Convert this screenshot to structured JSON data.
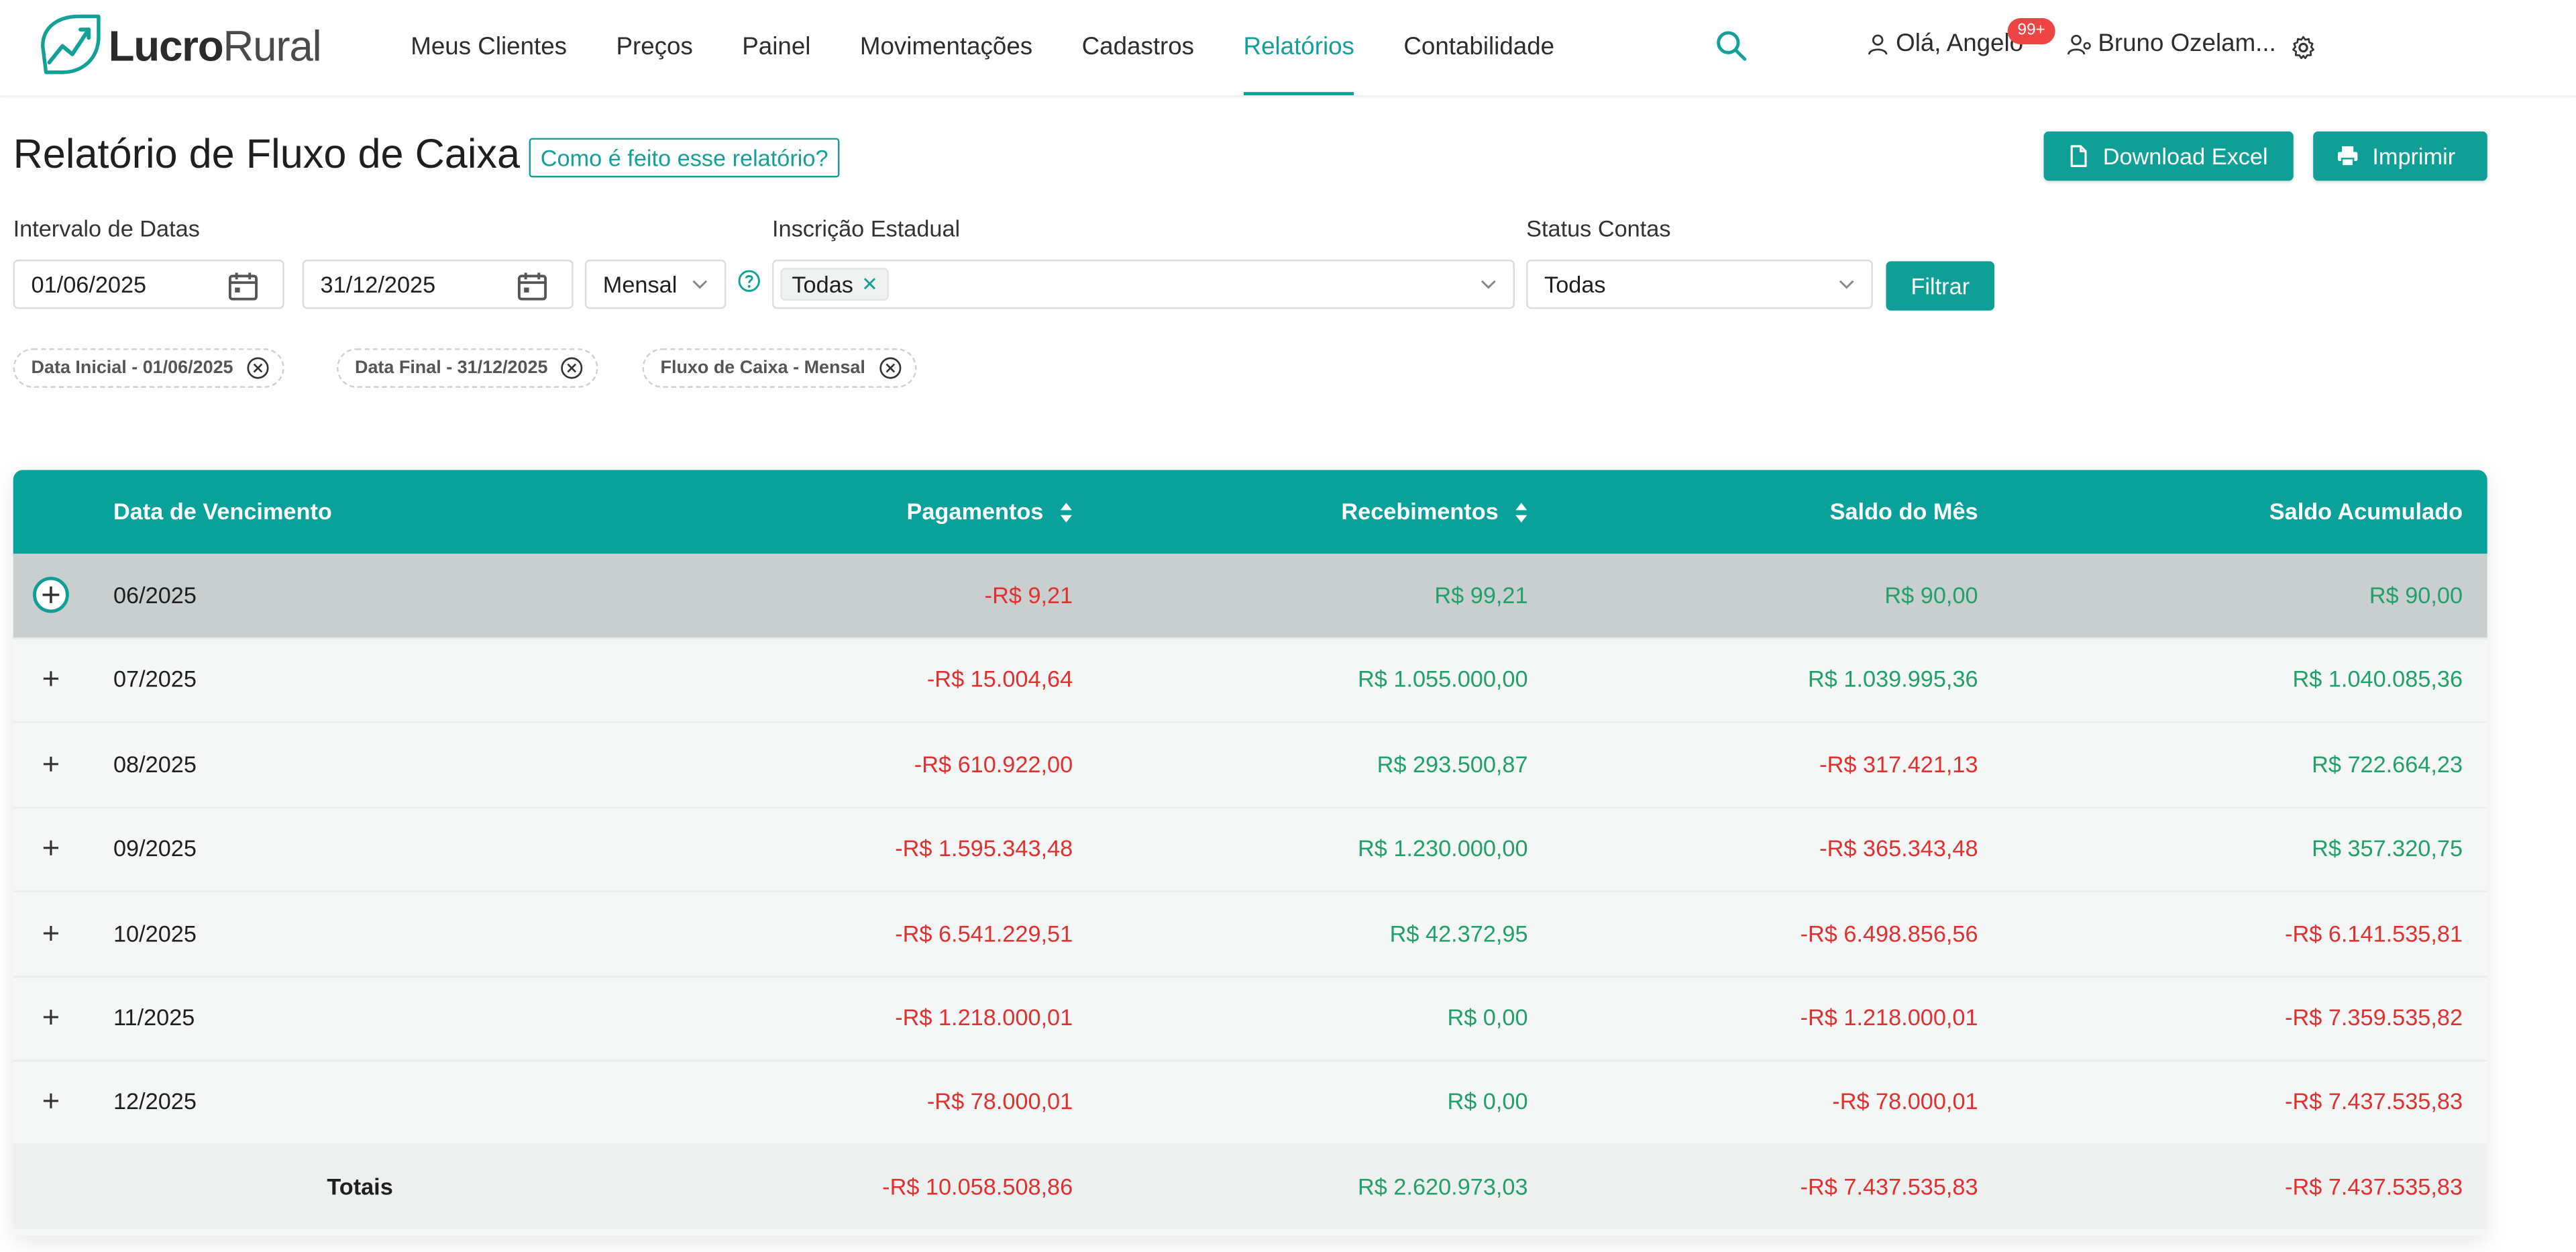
{
  "brand": {
    "name_bold": "Lucro",
    "name_light": "Rural"
  },
  "nav": [
    {
      "label": "Meus Clientes",
      "active": false
    },
    {
      "label": "Preços",
      "active": false
    },
    {
      "label": "Painel",
      "active": false
    },
    {
      "label": "Movimentações",
      "active": false
    },
    {
      "label": "Cadastros",
      "active": false
    },
    {
      "label": "Relatórios",
      "active": true
    },
    {
      "label": "Contabilidade",
      "active": false
    }
  ],
  "user": {
    "greeting": "Olá, Angelo",
    "badge": "99+",
    "account": "Bruno Ozelam..."
  },
  "page": {
    "title": "Relatório de Fluxo de Caixa",
    "howto": "Como é feito esse relatório?",
    "download_label": "Download Excel",
    "print_label": "Imprimir"
  },
  "filters": {
    "date_label": "Intervalo de Datas",
    "date_start": "01/06/2025",
    "date_end": "31/12/2025",
    "period": "Mensal",
    "ie_label": "Inscrição Estadual",
    "ie_tag": "Todas",
    "status_label": "Status Contas",
    "status_value": "Todas",
    "filter_button": "Filtrar"
  },
  "chips": [
    "Data Inicial - 01/06/2025",
    "Data Final - 31/12/2025",
    "Fluxo de Caixa - Mensal"
  ],
  "table": {
    "headers": {
      "date": "Data de Vencimento",
      "payments": "Pagamentos",
      "receipts": "Recebimentos",
      "month_balance": "Saldo do Mês",
      "accumulated": "Saldo Acumulado"
    },
    "rows": [
      {
        "date": "06/2025",
        "payments": "-R$ 9,21",
        "receipts": "R$ 99,21",
        "month": "R$ 90,00",
        "acc": "R$ 90,00"
      },
      {
        "date": "07/2025",
        "payments": "-R$ 15.004,64",
        "receipts": "R$ 1.055.000,00",
        "month": "R$ 1.039.995,36",
        "acc": "R$ 1.040.085,36"
      },
      {
        "date": "08/2025",
        "payments": "-R$ 610.922,00",
        "receipts": "R$ 293.500,87",
        "month": "-R$ 317.421,13",
        "acc": "R$ 722.664,23"
      },
      {
        "date": "09/2025",
        "payments": "-R$ 1.595.343,48",
        "receipts": "R$ 1.230.000,00",
        "month": "-R$ 365.343,48",
        "acc": "R$ 357.320,75"
      },
      {
        "date": "10/2025",
        "payments": "-R$ 6.541.229,51",
        "receipts": "R$ 42.372,95",
        "month": "-R$ 6.498.856,56",
        "acc": "-R$ 6.141.535,81"
      },
      {
        "date": "11/2025",
        "payments": "-R$ 1.218.000,01",
        "receipts": "R$ 0,00",
        "month": "-R$ 1.218.000,01",
        "acc": "-R$ 7.359.535,82"
      },
      {
        "date": "12/2025",
        "payments": "-R$ 78.000,01",
        "receipts": "R$ 0,00",
        "month": "-R$ 78.000,01",
        "acc": "-R$ 7.437.535,83"
      }
    ],
    "totals": {
      "label": "Totais",
      "payments": "-R$ 10.058.508,86",
      "receipts": "R$ 2.620.973,03",
      "month": "-R$ 7.437.535,83",
      "acc": "-R$ 7.437.535,83"
    }
  },
  "colors": {
    "accent": "#0f9f96",
    "negative": "#e03131",
    "positive": "#22a06b",
    "selected_row": "#c9cfcf"
  },
  "icons": [
    "logo-icon",
    "search-icon",
    "user-icon",
    "user-gear-icon",
    "gear-icon",
    "file-icon",
    "printer-icon",
    "calendar-icon",
    "chevron-down-icon",
    "help-icon",
    "close-circle-icon",
    "plus-icon",
    "sort-icon"
  ]
}
